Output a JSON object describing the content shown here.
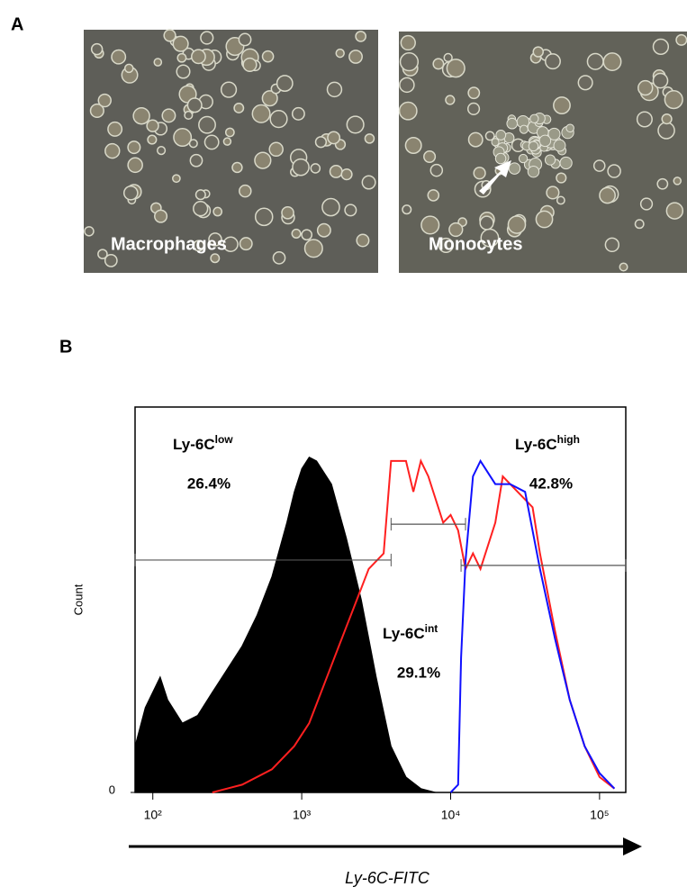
{
  "panel_a": {
    "letter": "A",
    "images": [
      {
        "label": "Macrophages"
      },
      {
        "label": "Monocytes"
      }
    ]
  },
  "chart_data": {
    "type": "histogram-overlay",
    "panel_letter": "B",
    "x_label": "Ly-6C-FITC",
    "y_label": "Count",
    "xscale": "log",
    "xlim": [
      76,
      150000
    ],
    "ylim": [
      0,
      100
    ],
    "xticks": [
      {
        "value": 100,
        "label": "10²"
      },
      {
        "value": 1000,
        "label": "10³"
      },
      {
        "value": 10000,
        "label": "10⁴"
      },
      {
        "value": 100000,
        "label": "10⁵"
      }
    ],
    "yticks": [
      0
    ],
    "series": [
      {
        "color": "#000000",
        "fill": true,
        "x": [
          76,
          89,
          112,
          126,
          158,
          200,
          251,
          316,
          398,
          501,
          631,
          794,
          891,
          1000,
          1122,
          1259,
          1585,
          1995,
          2512,
          3162,
          3981,
          5012,
          6310,
          7943
        ],
        "values": [
          12,
          22,
          30,
          24,
          18,
          20,
          26,
          32,
          38,
          46,
          56,
          70,
          78,
          84,
          87,
          86,
          80,
          66,
          50,
          30,
          12,
          4,
          1,
          0
        ]
      },
      {
        "color": "#ff2020",
        "fill": false,
        "x": [
          251,
          398,
          631,
          891,
          1122,
          1413,
          1778,
          2239,
          2818,
          3548,
          3981,
          5012,
          5623,
          6310,
          7079,
          8913,
          10000,
          11220,
          12589,
          14125,
          15849,
          19953,
          22387,
          28184,
          35481,
          39811,
          50119,
          63096,
          79433,
          100000,
          125893
        ],
        "values": [
          0,
          2,
          6,
          12,
          18,
          28,
          38,
          48,
          58,
          62,
          86,
          86,
          78,
          86,
          82,
          70,
          72,
          68,
          58,
          62,
          58,
          70,
          82,
          78,
          74,
          62,
          42,
          24,
          12,
          4,
          1
        ]
      },
      {
        "color": "#1010ff",
        "fill": false,
        "x": [
          10000,
          11220,
          11749,
          12589,
          14125,
          15849,
          19953,
          25119,
          31623,
          39811,
          50119,
          63096,
          79433,
          100000,
          125893
        ],
        "values": [
          0,
          2,
          35,
          60,
          82,
          86,
          80,
          80,
          78,
          58,
          40,
          24,
          12,
          5,
          1
        ]
      }
    ],
    "gates": [
      {
        "label": "Ly-6C",
        "sup": "low",
        "value": 26.4,
        "value_label": "26.4%",
        "x": [
          76,
          3981
        ],
        "level": 60.3
      },
      {
        "label": "Ly-6C",
        "sup": "int",
        "value": 29.1,
        "value_label": "29.1%",
        "x": [
          3981,
          12589
        ],
        "level": 69.6
      },
      {
        "label": "Ly-6C",
        "sup": "high",
        "value": 42.8,
        "value_label": "42.8%",
        "x": [
          11749,
          150000
        ],
        "level": 58.9
      }
    ]
  }
}
